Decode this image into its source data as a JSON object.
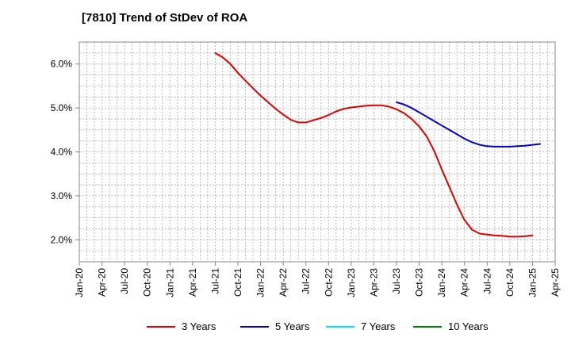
{
  "title": "[7810]  Trend of StDev of ROA",
  "chart_data": {
    "type": "line",
    "title": "[7810]  Trend of StDev of ROA",
    "xlabel": "",
    "ylabel": "",
    "x_ticks": [
      "Jan-20",
      "Apr-20",
      "Jul-20",
      "Oct-20",
      "Jan-21",
      "Apr-21",
      "Jul-21",
      "Oct-21",
      "Jan-22",
      "Apr-22",
      "Jul-22",
      "Oct-22",
      "Jan-23",
      "Apr-23",
      "Jul-23",
      "Oct-23",
      "Jan-24",
      "Apr-24",
      "Jul-24",
      "Oct-24",
      "Jan-25",
      "Apr-25"
    ],
    "y_ticks": [
      "2.0%",
      "3.0%",
      "4.0%",
      "5.0%",
      "6.0%"
    ],
    "y_tick_values": [
      2.0,
      3.0,
      4.0,
      5.0,
      6.0
    ],
    "ylim": [
      1.5,
      6.5
    ],
    "grid": true,
    "legend_position": "bottom",
    "series": [
      {
        "name": "3 Years",
        "color": "#e00000",
        "points": [
          [
            "Jul-21",
            6.25
          ],
          [
            "Aug-21",
            6.15
          ],
          [
            "Sep-21",
            6.0
          ],
          [
            "Oct-21",
            5.8
          ],
          [
            "Nov-21",
            5.62
          ],
          [
            "Dec-21",
            5.45
          ],
          [
            "Jan-22",
            5.28
          ],
          [
            "Feb-22",
            5.13
          ],
          [
            "Mar-22",
            4.98
          ],
          [
            "Apr-22",
            4.85
          ],
          [
            "May-22",
            4.73
          ],
          [
            "Jun-22",
            4.67
          ],
          [
            "Jul-22",
            4.67
          ],
          [
            "Aug-22",
            4.72
          ],
          [
            "Sep-22",
            4.77
          ],
          [
            "Oct-22",
            4.84
          ],
          [
            "Nov-22",
            4.92
          ],
          [
            "Dec-22",
            4.98
          ],
          [
            "Jan-23",
            5.01
          ],
          [
            "Feb-23",
            5.03
          ],
          [
            "Mar-23",
            5.05
          ],
          [
            "Apr-23",
            5.06
          ],
          [
            "May-23",
            5.06
          ],
          [
            "Jun-23",
            5.03
          ],
          [
            "Jul-23",
            4.97
          ],
          [
            "Aug-23",
            4.88
          ],
          [
            "Sep-23",
            4.75
          ],
          [
            "Oct-23",
            4.58
          ],
          [
            "Nov-23",
            4.35
          ],
          [
            "Dec-23",
            4.02
          ],
          [
            "Jan-24",
            3.6
          ],
          [
            "Feb-24",
            3.2
          ],
          [
            "Mar-24",
            2.8
          ],
          [
            "Apr-24",
            2.45
          ],
          [
            "May-24",
            2.23
          ],
          [
            "Jun-24",
            2.14
          ],
          [
            "Jul-24",
            2.12
          ],
          [
            "Aug-24",
            2.1
          ],
          [
            "Sep-24",
            2.09
          ],
          [
            "Oct-24",
            2.07
          ],
          [
            "Nov-24",
            2.07
          ],
          [
            "Dec-24",
            2.08
          ],
          [
            "Jan-25",
            2.1
          ]
        ]
      },
      {
        "name": "5 Years",
        "color": "#0000cc",
        "points": [
          [
            "Jul-23",
            5.13
          ],
          [
            "Aug-23",
            5.08
          ],
          [
            "Sep-23",
            5.0
          ],
          [
            "Oct-23",
            4.9
          ],
          [
            "Nov-23",
            4.8
          ],
          [
            "Dec-23",
            4.7
          ],
          [
            "Jan-24",
            4.6
          ],
          [
            "Feb-24",
            4.5
          ],
          [
            "Mar-24",
            4.4
          ],
          [
            "Apr-24",
            4.3
          ],
          [
            "May-24",
            4.22
          ],
          [
            "Jun-24",
            4.16
          ],
          [
            "Jul-24",
            4.13
          ],
          [
            "Aug-24",
            4.12
          ],
          [
            "Sep-24",
            4.12
          ],
          [
            "Oct-24",
            4.12
          ],
          [
            "Nov-24",
            4.13
          ],
          [
            "Dec-24",
            4.14
          ],
          [
            "Jan-25",
            4.16
          ],
          [
            "Feb-25",
            4.18
          ]
        ]
      },
      {
        "name": "7 Years",
        "color": "#00e5ff",
        "points": []
      },
      {
        "name": "10 Years",
        "color": "#008000",
        "points": []
      }
    ]
  }
}
